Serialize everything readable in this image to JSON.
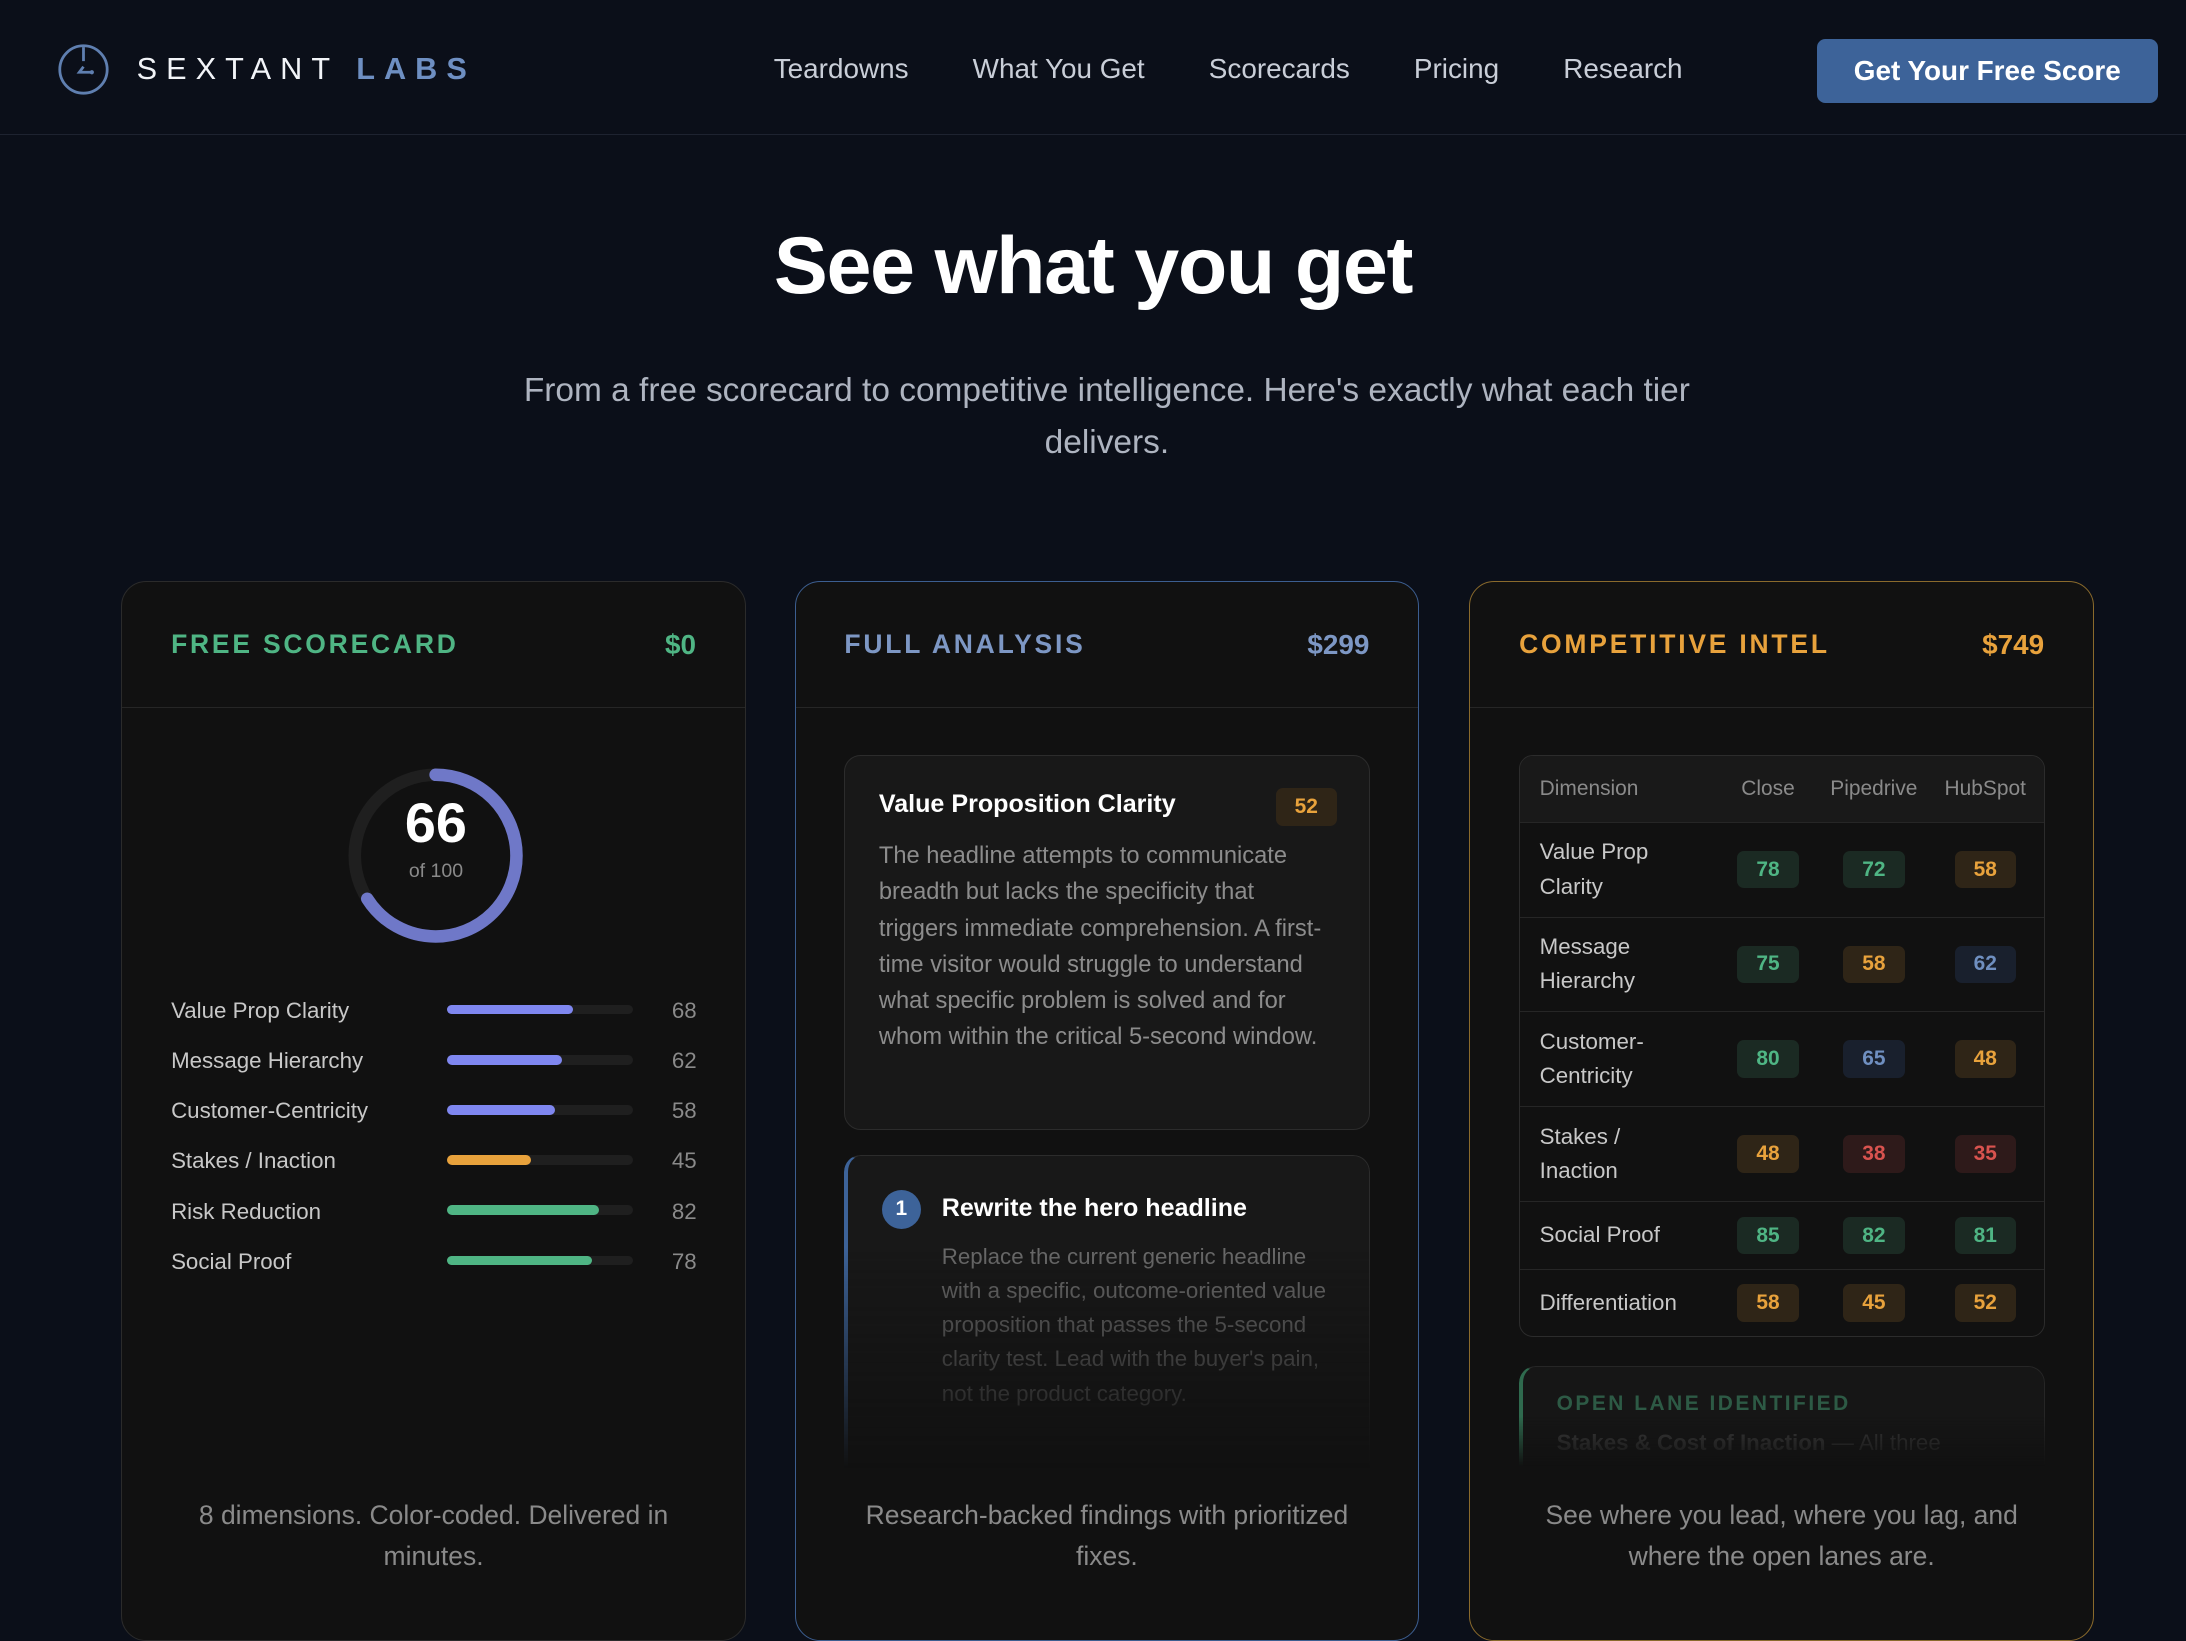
{
  "nav": {
    "brand_first": "SEXTANT",
    "brand_second": "LABS",
    "links": [
      "Teardowns",
      "What You Get",
      "Scorecards",
      "Pricing",
      "Research"
    ],
    "cta": "Get Your Free Score"
  },
  "hero": {
    "title": "See what you get",
    "subtitle": "From a free scorecard to competitive intelligence. Here's exactly what each tier delivers."
  },
  "colors": {
    "green": "#4fb584",
    "orange": "#e8a23c",
    "blue": "#6f8fc0",
    "red": "#d9534f",
    "indigo": "#7f87f0",
    "cta": "#3d6399"
  },
  "tiers": [
    {
      "name": "FREE SCORECARD",
      "price": "$0",
      "score": "66",
      "score_fraction": 0.66,
      "score_of": "of 100",
      "dimensions": [
        {
          "label": "Value Prop Clarity",
          "value": "68",
          "pct": 68,
          "color": "#7f87f0"
        },
        {
          "label": "Message Hierarchy",
          "value": "62",
          "pct": 62,
          "color": "#7f87f0"
        },
        {
          "label": "Customer-Centricity",
          "value": "58",
          "pct": 58,
          "color": "#7f87f0"
        },
        {
          "label": "Stakes / Inaction",
          "value": "45",
          "pct": 45,
          "color": "#e8a23c"
        },
        {
          "label": "Risk Reduction",
          "value": "82",
          "pct": 82,
          "color": "#4fb584"
        },
        {
          "label": "Social Proof",
          "value": "78",
          "pct": 78,
          "color": "#4fb584"
        }
      ],
      "footer": "8 dimensions. Color-coded. Delivered in minutes."
    },
    {
      "name": "FULL ANALYSIS",
      "price": "$299",
      "finding": {
        "title": "Value Proposition Clarity",
        "score": "52",
        "body": "The headline attempts to communicate breadth but lacks the specificity that triggers immediate comprehension. A first-time visitor would struggle to understand what specific problem is solved and for whom within the critical 5-second window."
      },
      "fix": {
        "number": "1",
        "title": "Rewrite the hero headline",
        "body": "Replace the current generic headline with a specific, outcome-oriented value proposition that passes the 5-second clarity test. Lead with the buyer's pain, not the product category."
      },
      "footer": "Research-backed findings with prioritized fixes."
    },
    {
      "name": "COMPETITIVE INTEL",
      "price": "$749",
      "table": {
        "headers": [
          "Dimension",
          "Close",
          "Pipedrive",
          "HubSpot"
        ],
        "rows": [
          {
            "dimension": "Value Prop Clarity",
            "scores": [
              {
                "v": "78",
                "t": "g"
              },
              {
                "v": "72",
                "t": "g"
              },
              {
                "v": "58",
                "t": "o"
              }
            ]
          },
          {
            "dimension": "Message Hierarchy",
            "scores": [
              {
                "v": "75",
                "t": "g"
              },
              {
                "v": "58",
                "t": "o"
              },
              {
                "v": "62",
                "t": "bl"
              }
            ]
          },
          {
            "dimension": "Customer-Centricity",
            "scores": [
              {
                "v": "80",
                "t": "g"
              },
              {
                "v": "65",
                "t": "bl"
              },
              {
                "v": "48",
                "t": "o"
              }
            ]
          },
          {
            "dimension": "Stakes / Inaction",
            "scores": [
              {
                "v": "48",
                "t": "o"
              },
              {
                "v": "38",
                "t": "r"
              },
              {
                "v": "35",
                "t": "r"
              }
            ]
          },
          {
            "dimension": "Social Proof",
            "scores": [
              {
                "v": "85",
                "t": "g"
              },
              {
                "v": "82",
                "t": "g"
              },
              {
                "v": "81",
                "t": "g"
              }
            ]
          },
          {
            "dimension": "Differentiation",
            "scores": [
              {
                "v": "58",
                "t": "o"
              },
              {
                "v": "45",
                "t": "o"
              },
              {
                "v": "52",
                "t": "o"
              }
            ]
          }
        ]
      },
      "open_lane": {
        "label": "OPEN LANE IDENTIFIED",
        "title": "Stakes & Cost of Inaction",
        "rest": " — All three"
      },
      "footer": "See where you lead, where you lag, and where the open lanes are."
    }
  ]
}
